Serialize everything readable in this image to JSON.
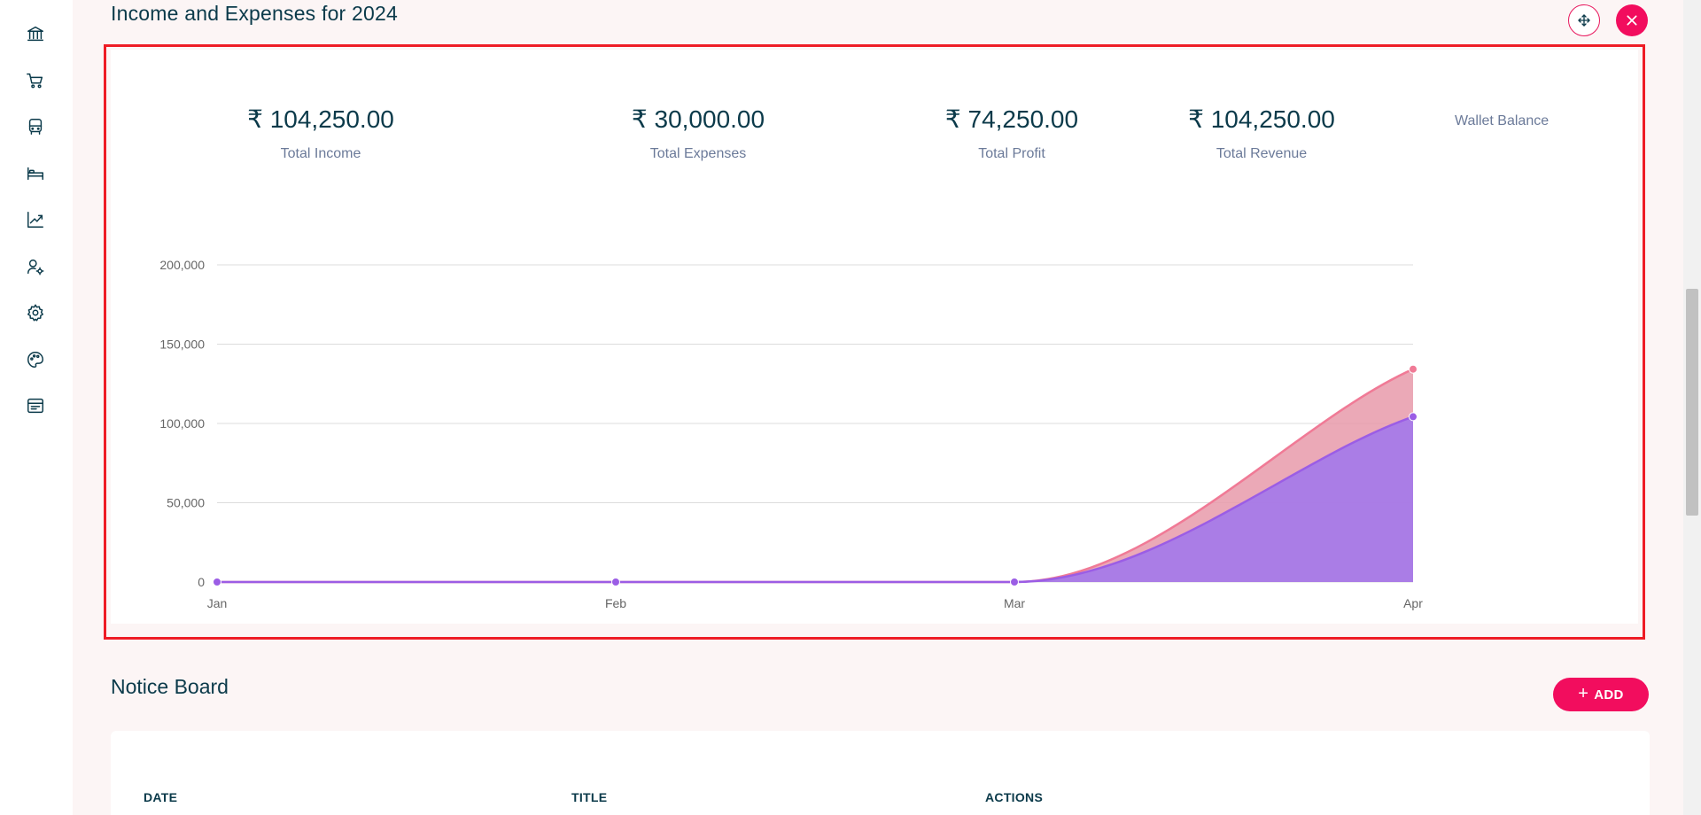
{
  "section": {
    "title": "Income and Expenses for 2024"
  },
  "stats": [
    {
      "value": "₹ 104,250.00",
      "label": "Total Income"
    },
    {
      "value": "₹ 30,000.00",
      "label": "Total Expenses"
    },
    {
      "value": "₹ 74,250.00",
      "label": "Total Profit"
    },
    {
      "value": "₹ 104,250.00",
      "label": "Total Revenue"
    }
  ],
  "wallet": {
    "label": "Wallet Balance"
  },
  "sidebar": {
    "icons": [
      "bank-icon",
      "cart-icon",
      "bus-icon",
      "bed-icon",
      "chart-line-icon",
      "user-settings-icon",
      "gear-icon",
      "palette-icon",
      "card-icon"
    ]
  },
  "notice": {
    "title": "Notice Board",
    "add_label": "ADD",
    "columns": [
      "DATE",
      "TITLE",
      "ACTIONS"
    ]
  },
  "colors": {
    "accent": "#f20d5e",
    "income_fill": "#a77ae8",
    "income_line": "#9b5de5",
    "revenue_fill": "#e89aaa",
    "revenue_line": "#f07a96",
    "text": "#0b3a4a"
  },
  "chart_data": {
    "type": "area",
    "categories": [
      "Jan",
      "Feb",
      "Mar",
      "Apr"
    ],
    "series": [
      {
        "values": [
          0,
          0,
          0,
          104250
        ]
      },
      {
        "values": [
          0,
          0,
          0,
          134250
        ]
      }
    ],
    "yticks": [
      "0",
      "50,000",
      "100,000",
      "150,000",
      "200,000"
    ],
    "ylim": [
      0,
      200000
    ],
    "grid": true
  }
}
